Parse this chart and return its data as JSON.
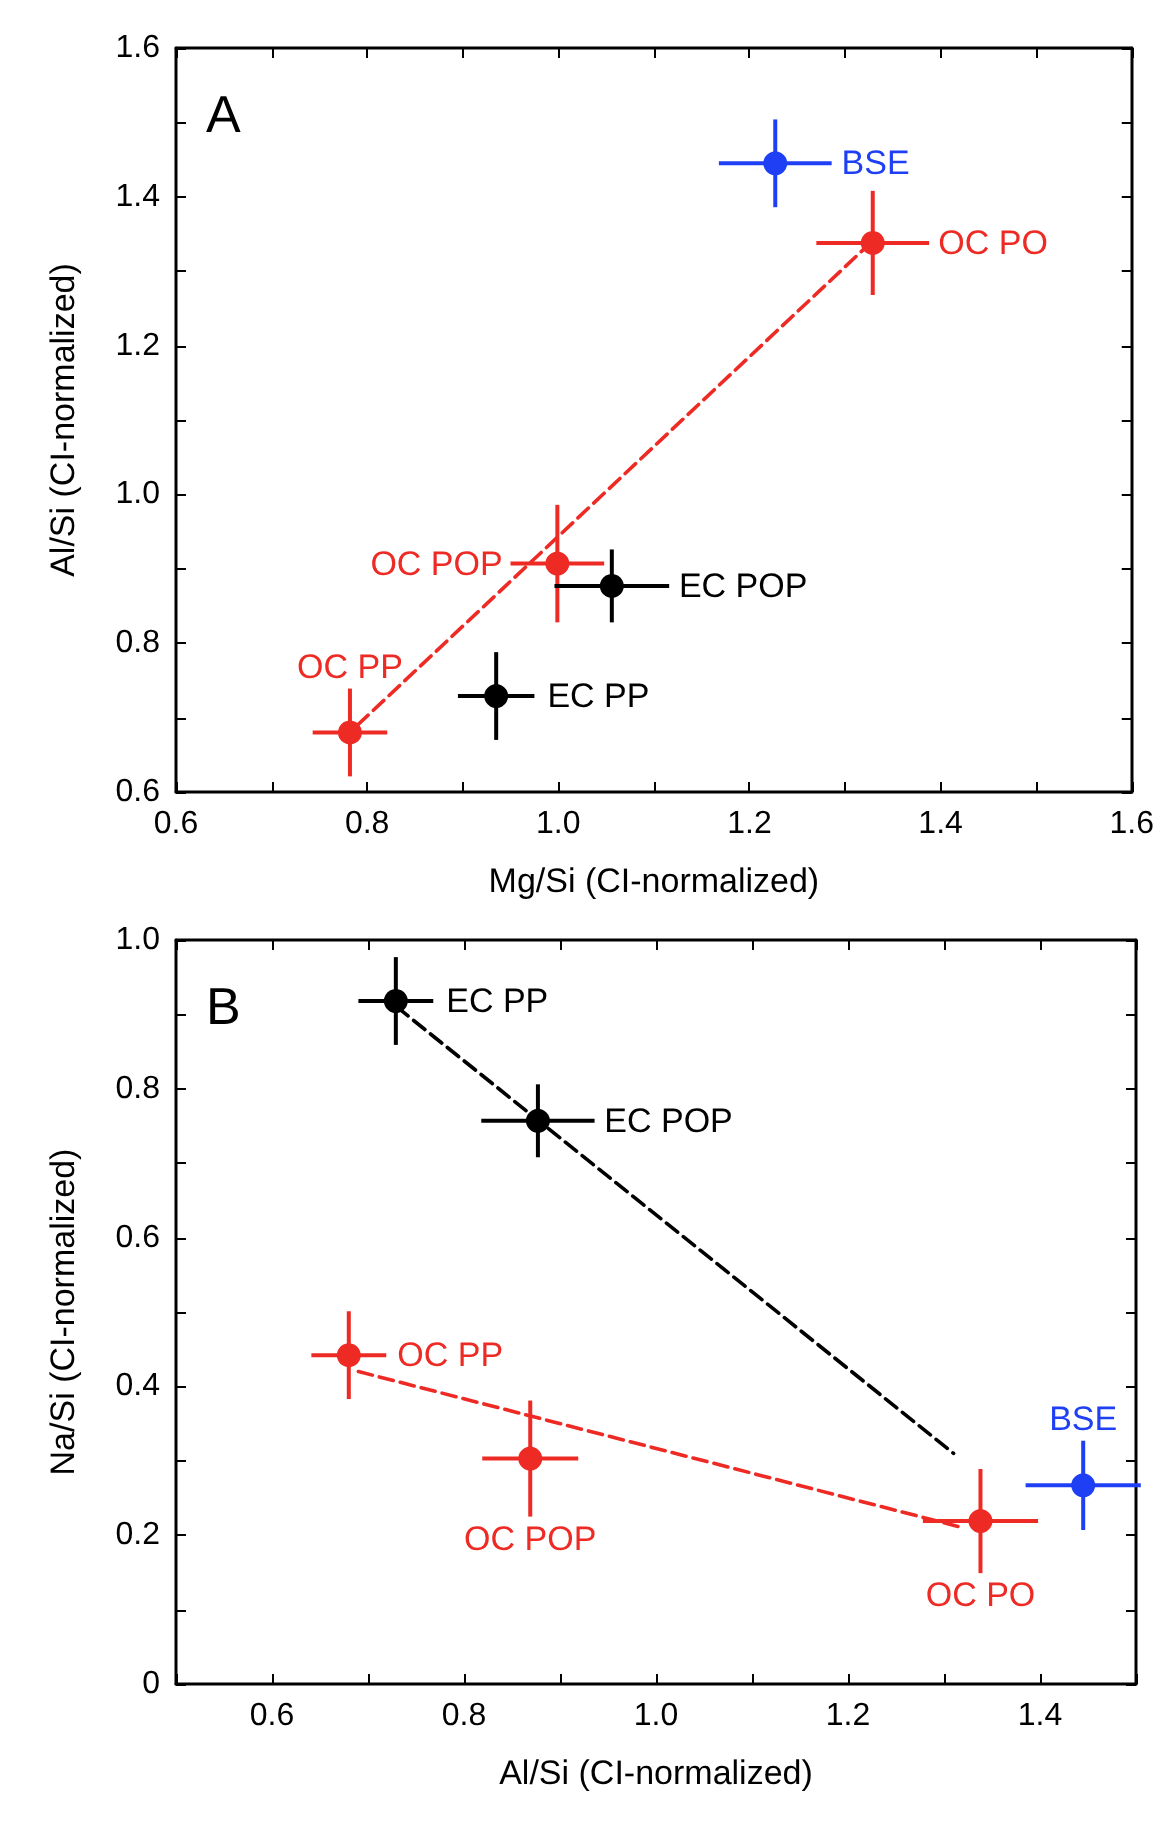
{
  "chart_data": [
    {
      "type": "scatter",
      "title": "A",
      "xlabel": "Mg/Si (CI-normalized)",
      "ylabel": "Al/Si (CI-normalized)",
      "xlim": [
        0.6,
        1.6
      ],
      "ylim": [
        0.6,
        1.6
      ],
      "xticks": [
        {
          "value": 0.6,
          "label": "0.6"
        },
        {
          "value": 0.7,
          "label": null
        },
        {
          "value": 0.8,
          "label": "0.8"
        },
        {
          "value": 0.9,
          "label": null
        },
        {
          "value": 1.0,
          "label": "1.0"
        },
        {
          "value": 1.1,
          "label": null
        },
        {
          "value": 1.2,
          "label": "1.2"
        },
        {
          "value": 1.3,
          "label": null
        },
        {
          "value": 1.4,
          "label": "1.4"
        },
        {
          "value": 1.5,
          "label": null
        },
        {
          "value": 1.6,
          "label": "1.6"
        }
      ],
      "yticks": [
        {
          "value": 0.6,
          "label": "0.6"
        },
        {
          "value": 0.7,
          "label": null
        },
        {
          "value": 0.8,
          "label": "0.8"
        },
        {
          "value": 0.9,
          "label": null
        },
        {
          "value": 1.0,
          "label": "1.0"
        },
        {
          "value": 1.1,
          "label": null
        },
        {
          "value": 1.2,
          "label": "1.2"
        },
        {
          "value": 1.3,
          "label": null
        },
        {
          "value": 1.4,
          "label": "1.4"
        },
        {
          "value": 1.5,
          "label": null
        },
        {
          "value": 1.6,
          "label": "1.6"
        }
      ],
      "grid": false,
      "marker": "circle",
      "series": [
        {
          "type": "line",
          "color": "#ee2a24",
          "line_style": "dashed",
          "marker": "none",
          "x": [
            0.79,
            1.32
          ],
          "values": [
            0.69,
            1.33
          ]
        },
        {
          "color": "#ee2a24",
          "x": [
            0.782,
            0.999,
            1.329
          ],
          "values": [
            0.68,
            0.907,
            1.338
          ],
          "xerrors": [
            0.039,
            0.049,
            0.059
          ],
          "errors": [
            0.059,
            0.079,
            0.07
          ]
        },
        {
          "color": "#000000",
          "x": [
            0.935,
            1.056
          ],
          "values": [
            0.729,
            0.877
          ],
          "xerrors": [
            0.04,
            0.06
          ],
          "errors": [
            0.059,
            0.049
          ]
        },
        {
          "color": "#1f3ff5",
          "x": [
            1.227
          ],
          "values": [
            1.445
          ],
          "xerrors": [
            0.059
          ],
          "errors": [
            0.059
          ]
        }
      ],
      "annotations": [
        {
          "text": "OC PP",
          "x": 0.782,
          "y": 0.68
        },
        {
          "text": "OC POP",
          "x": 0.999,
          "y": 0.907
        },
        {
          "text": "OC PO",
          "x": 1.329,
          "y": 1.338
        },
        {
          "text": "EC PP",
          "x": 0.935,
          "y": 0.729
        },
        {
          "text": "EC POP",
          "x": 1.056,
          "y": 0.877
        },
        {
          "text": "BSE",
          "x": 1.227,
          "y": 1.445
        }
      ]
    },
    {
      "type": "scatter",
      "title": "B",
      "xlabel": "Al/Si (CI-normalized)",
      "ylabel": "Na/Si (CI-normalized)",
      "xlim": [
        0.5,
        1.5
      ],
      "ylim": [
        0,
        1.0
      ],
      "xticks": [
        {
          "value": 0.5,
          "label": null
        },
        {
          "value": 0.6,
          "label": "0.6"
        },
        {
          "value": 0.7,
          "label": null
        },
        {
          "value": 0.8,
          "label": "0.8"
        },
        {
          "value": 0.9,
          "label": null
        },
        {
          "value": 1.0,
          "label": "1.0"
        },
        {
          "value": 1.1,
          "label": null
        },
        {
          "value": 1.2,
          "label": "1.2"
        },
        {
          "value": 1.3,
          "label": null
        },
        {
          "value": 1.4,
          "label": "1.4"
        },
        {
          "value": 1.5,
          "label": null
        }
      ],
      "yticks": [
        0,
        {
          "value": 0.1,
          "label": null
        },
        {
          "value": 0.2,
          "label": "0.2"
        },
        {
          "value": 0.3,
          "label": null
        },
        {
          "value": 0.4,
          "label": "0.4"
        },
        {
          "value": 0.5,
          "label": null
        },
        {
          "value": 0.6,
          "label": "0.6"
        },
        {
          "value": 0.7,
          "label": null
        },
        {
          "value": 0.8,
          "label": "0.8"
        },
        {
          "value": 0.9,
          "label": null
        },
        {
          "value": 1.0,
          "label": "1.0"
        }
      ],
      "grid": false,
      "marker": "circle",
      "series": [
        {
          "type": "line",
          "color": "#000000",
          "line_style": "dashed",
          "marker": "none",
          "x": [
            0.73,
            1.31
          ],
          "values": [
            0.91,
            0.31
          ]
        },
        {
          "type": "line",
          "color": "#ee2a24",
          "line_style": "dashed",
          "marker": "none",
          "x": [
            0.69,
            1.32
          ],
          "values": [
            0.42,
            0.21
          ]
        },
        {
          "color": "#000000",
          "x": [
            0.729,
            0.877
          ],
          "values": [
            0.918,
            0.757
          ],
          "xerrors": [
            0.039,
            0.059
          ],
          "errors": [
            0.059,
            0.049
          ]
        },
        {
          "color": "#ee2a24",
          "x": [
            0.68,
            0.869,
            1.338
          ],
          "values": [
            0.442,
            0.303,
            0.219
          ],
          "xerrors": [
            0.039,
            0.05,
            0.06
          ],
          "errors": [
            0.059,
            0.078,
            0.07
          ]
        },
        {
          "color": "#1f3ff5",
          "x": [
            1.445
          ],
          "values": [
            0.267
          ],
          "xerrors": [
            0.06
          ],
          "errors": [
            0.06
          ]
        }
      ],
      "annotations": [
        {
          "text": "EC PP",
          "x": 0.729,
          "y": 0.918
        },
        {
          "text": "EC POP",
          "x": 0.877,
          "y": 0.757
        },
        {
          "text": "OC PP",
          "x": 0.68,
          "y": 0.442
        },
        {
          "text": "OC POP",
          "x": 0.869,
          "y": 0.303
        },
        {
          "text": "OC PO",
          "x": 1.338,
          "y": 0.219
        },
        {
          "text": "BSE",
          "x": 1.445,
          "y": 0.267
        }
      ]
    }
  ]
}
